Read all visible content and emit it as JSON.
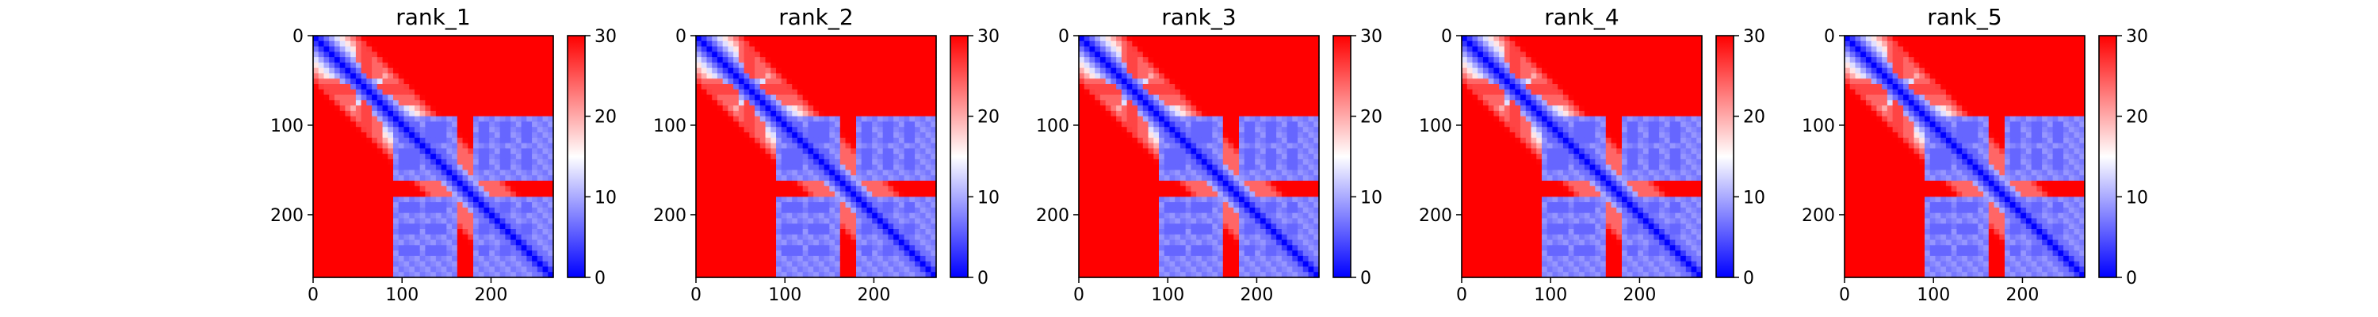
{
  "chart_data": [
    {
      "type": "heatmap",
      "title": "rank_1",
      "xlabel": "",
      "ylabel": "",
      "xlim": [
        0,
        270
      ],
      "ylim": [
        270,
        0
      ],
      "x_ticks": [
        "0",
        "100",
        "200"
      ],
      "y_ticks": [
        "0",
        "100",
        "200"
      ],
      "colorbar": {
        "range": [
          0,
          30
        ],
        "ticks": [
          "0",
          "10",
          "20",
          "30"
        ],
        "colormap": "bwr"
      },
      "grid": false,
      "matrix_size": 270,
      "hot_bands": [
        [
          48,
          80
        ],
        [
          160,
          178
        ]
      ],
      "cold_bands": [
        [
          95,
          118
        ],
        [
          128,
          148
        ],
        [
          185,
          198
        ],
        [
          210,
          222
        ],
        [
          232,
          244
        ]
      ],
      "hot_streak": [
        55,
        65
      ]
    },
    {
      "type": "heatmap",
      "title": "rank_2",
      "xlabel": "",
      "ylabel": "",
      "xlim": [
        0,
        270
      ],
      "ylim": [
        270,
        0
      ],
      "x_ticks": [
        "0",
        "100",
        "200"
      ],
      "y_ticks": [
        "0",
        "100",
        "200"
      ],
      "colorbar": {
        "range": [
          0,
          30
        ],
        "ticks": [
          "0",
          "10",
          "20",
          "30"
        ],
        "colormap": "bwr"
      },
      "grid": false,
      "matrix_size": 270,
      "hot_bands": [
        [
          48,
          80
        ],
        [
          160,
          178
        ]
      ],
      "cold_bands": [
        [
          95,
          118
        ],
        [
          128,
          148
        ],
        [
          185,
          198
        ],
        [
          210,
          222
        ],
        [
          232,
          244
        ]
      ],
      "hot_streak": [
        55,
        65
      ]
    },
    {
      "type": "heatmap",
      "title": "rank_3",
      "xlabel": "",
      "ylabel": "",
      "xlim": [
        0,
        270
      ],
      "ylim": [
        270,
        0
      ],
      "x_ticks": [
        "0",
        "100",
        "200"
      ],
      "y_ticks": [
        "0",
        "100",
        "200"
      ],
      "colorbar": {
        "range": [
          0,
          30
        ],
        "ticks": [
          "0",
          "10",
          "20",
          "30"
        ],
        "colormap": "bwr"
      },
      "grid": false,
      "matrix_size": 270,
      "hot_bands": [
        [
          48,
          80
        ],
        [
          160,
          178
        ]
      ],
      "cold_bands": [
        [
          95,
          118
        ],
        [
          128,
          148
        ],
        [
          185,
          198
        ],
        [
          210,
          222
        ],
        [
          232,
          244
        ]
      ],
      "hot_streak": [
        55,
        65
      ]
    },
    {
      "type": "heatmap",
      "title": "rank_4",
      "xlabel": "",
      "ylabel": "",
      "xlim": [
        0,
        270
      ],
      "ylim": [
        270,
        0
      ],
      "x_ticks": [
        "0",
        "100",
        "200"
      ],
      "y_ticks": [
        "0",
        "100",
        "200"
      ],
      "colorbar": {
        "range": [
          0,
          30
        ],
        "ticks": [
          "0",
          "10",
          "20",
          "30"
        ],
        "colormap": "bwr"
      },
      "grid": false,
      "matrix_size": 270,
      "hot_bands": [
        [
          48,
          80
        ],
        [
          160,
          178
        ]
      ],
      "cold_bands": [
        [
          95,
          118
        ],
        [
          128,
          148
        ],
        [
          185,
          198
        ],
        [
          210,
          222
        ],
        [
          232,
          244
        ]
      ],
      "hot_streak": [
        55,
        65
      ]
    },
    {
      "type": "heatmap",
      "title": "rank_5",
      "xlabel": "",
      "ylabel": "",
      "xlim": [
        0,
        270
      ],
      "ylim": [
        270,
        0
      ],
      "x_ticks": [
        "0",
        "100",
        "200"
      ],
      "y_ticks": [
        "0",
        "100",
        "200"
      ],
      "colorbar": {
        "range": [
          0,
          30
        ],
        "ticks": [
          "0",
          "10",
          "20",
          "30"
        ],
        "colormap": "bwr"
      },
      "grid": false,
      "matrix_size": 270,
      "hot_bands": [
        [
          48,
          80
        ],
        [
          160,
          178
        ]
      ],
      "cold_bands": [
        [
          95,
          118
        ],
        [
          128,
          148
        ],
        [
          185,
          198
        ],
        [
          210,
          222
        ],
        [
          232,
          244
        ]
      ],
      "hot_streak": [
        55,
        65
      ]
    }
  ],
  "colors": {
    "low": "#0000ff",
    "mid": "#ffffff",
    "high": "#ff0000",
    "axis": "#000000",
    "background": "#ffffff"
  }
}
